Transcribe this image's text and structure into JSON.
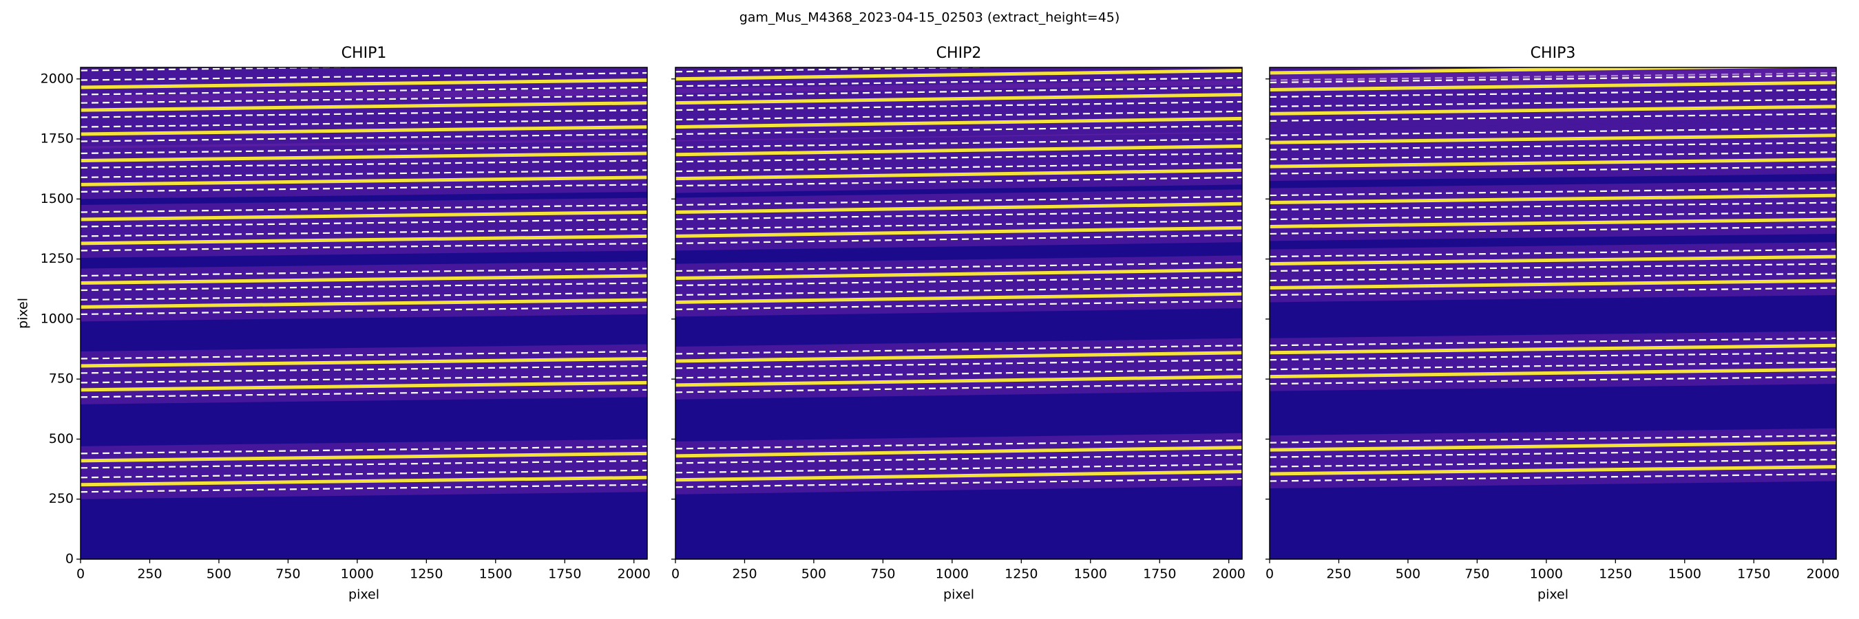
{
  "title": "gam_Mus_M4368_2023-04-15_02503  (extract_height=45)",
  "chart_data": [
    {
      "type": "image",
      "title": "CHIP1",
      "xlabel": "pixel",
      "ylabel": "pixel",
      "xlim": [
        0,
        2048
      ],
      "ylim": [
        0,
        2048
      ],
      "xticks": [
        0,
        250,
        500,
        750,
        1000,
        1250,
        1500,
        1750,
        2000
      ],
      "yticks": [
        0,
        250,
        500,
        750,
        1000,
        1250,
        1500,
        1750,
        2000
      ],
      "orders": {
        "y_left": [
          2015,
          1820,
          1610,
          1365,
          1100,
          755,
          360
        ],
        "y_right": [
          2045,
          1850,
          1640,
          1395,
          1130,
          785,
          390
        ]
      }
    },
    {
      "type": "image",
      "title": "CHIP2",
      "xlabel": "pixel",
      "xlim": [
        0,
        2048
      ],
      "ylim": [
        0,
        2048
      ],
      "xticks": [
        0,
        250,
        500,
        750,
        1000,
        1250,
        1500,
        1750,
        2000
      ],
      "orders": {
        "y_left": [
          2050,
          1850,
          1635,
          1395,
          1120,
          775,
          380
        ],
        "y_right": [
          2085,
          1885,
          1670,
          1430,
          1155,
          810,
          415
        ]
      }
    },
    {
      "type": "image",
      "title": "CHIP3",
      "xlabel": "pixel",
      "xlim": [
        0,
        2048
      ],
      "ylim": [
        0,
        2048
      ],
      "xticks": [
        0,
        250,
        500,
        750,
        1000,
        1250,
        1500,
        1750,
        2000
      ],
      "orders": {
        "y_left": [
          2075,
          1905,
          1685,
          1435,
          1180,
          810,
          405
        ],
        "y_right": [
          2105,
          1935,
          1715,
          1465,
          1210,
          840,
          435
        ]
      }
    }
  ]
}
